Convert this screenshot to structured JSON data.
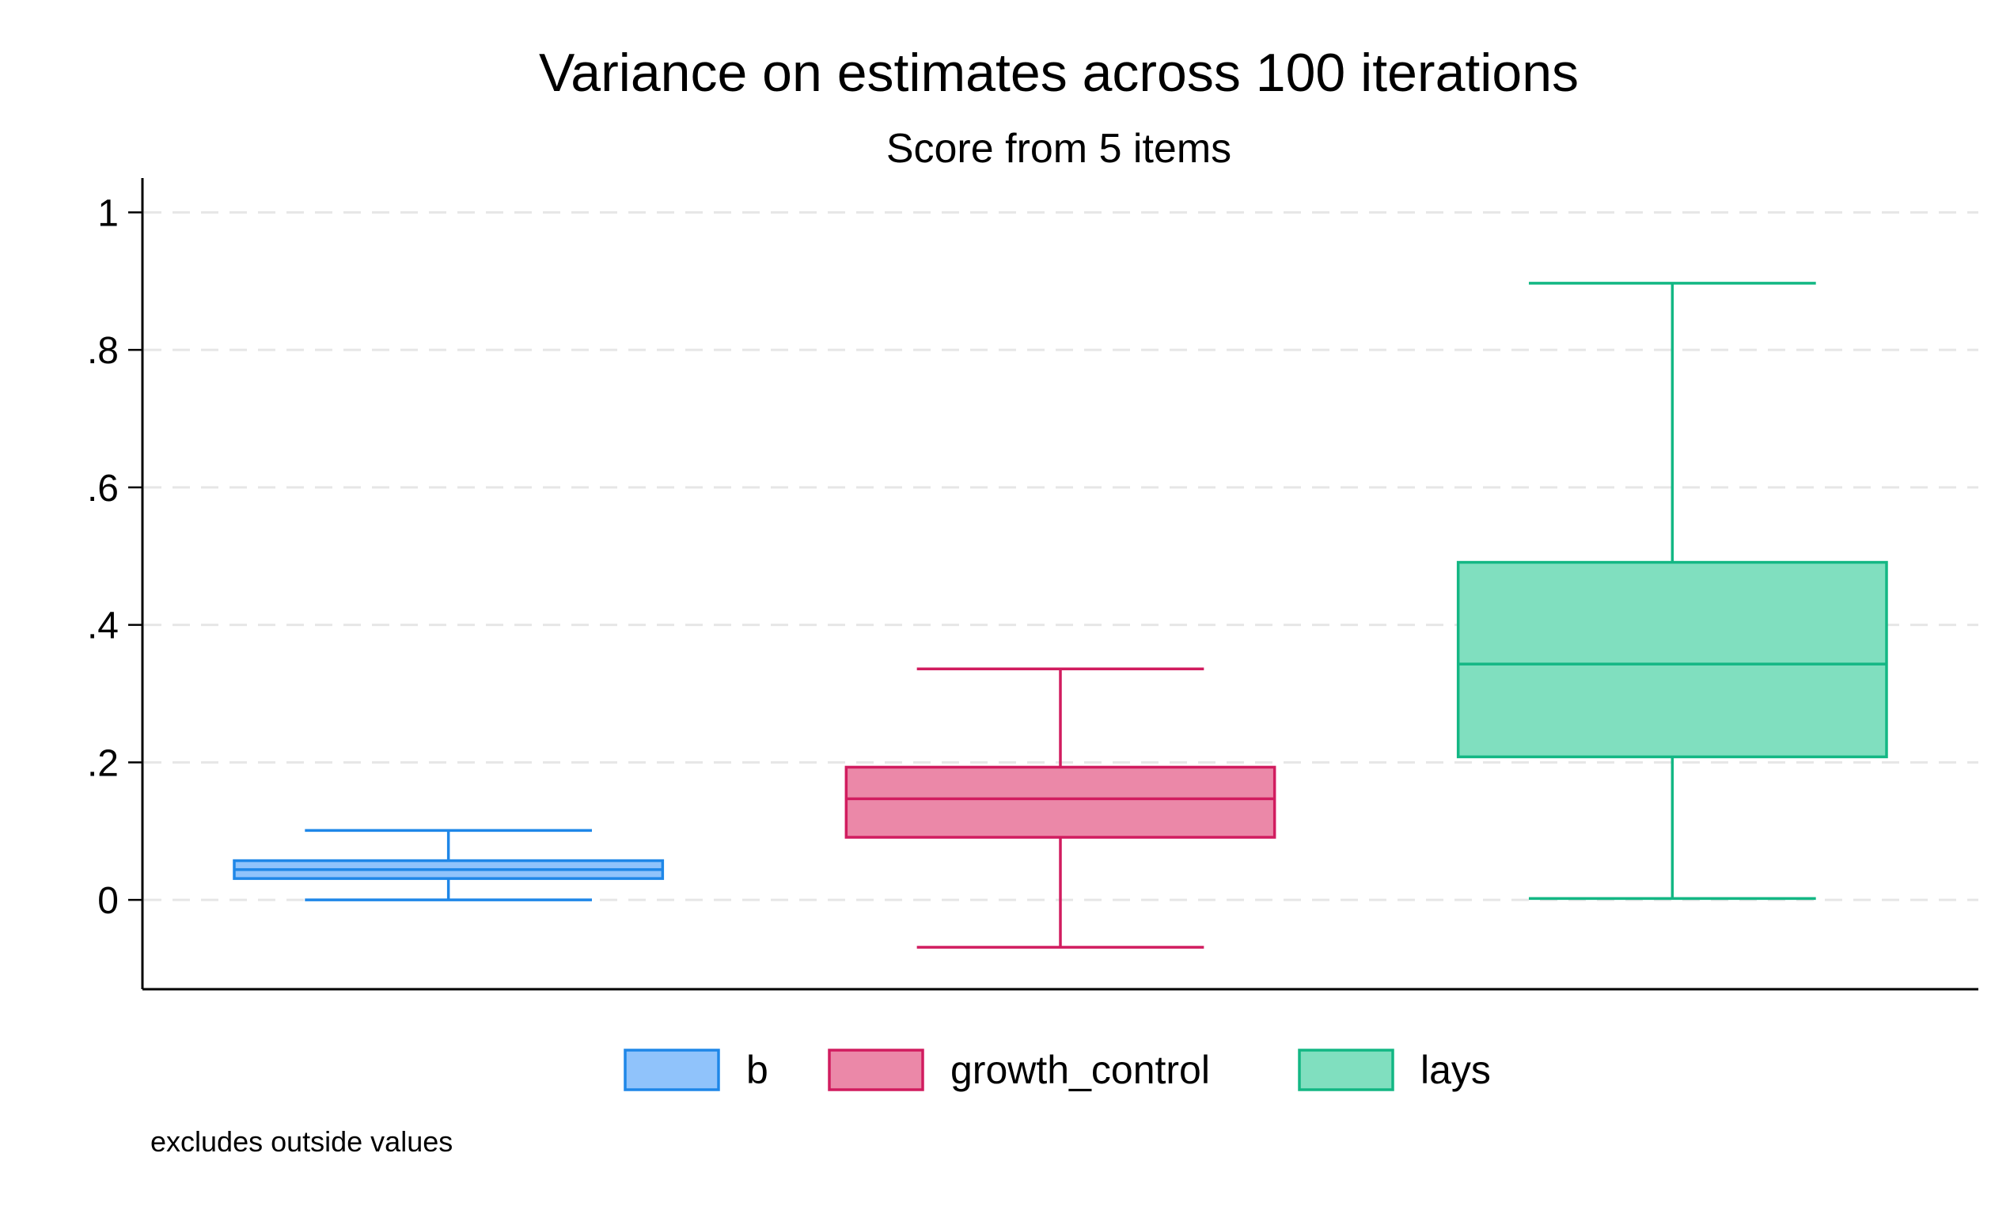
{
  "chart_data": {
    "type": "box",
    "title": "Variance on estimates across 100 iterations",
    "subtitle": "Score from 5 items",
    "xlabel": "",
    "ylabel": "",
    "ylim": [
      -0.13,
      1.05
    ],
    "yticks": [
      {
        "value": 0,
        "label": "0"
      },
      {
        "value": 0.2,
        "label": ".2"
      },
      {
        "value": 0.4,
        "label": ".4"
      },
      {
        "value": 0.6,
        "label": ".6"
      },
      {
        "value": 0.8,
        "label": ".8"
      },
      {
        "value": 1,
        "label": "1"
      }
    ],
    "grid": true,
    "legend_position": "bottom",
    "note": "excludes outside values",
    "series": [
      {
        "name": "b",
        "whisker_low": 0.0,
        "q1": 0.031,
        "median": 0.044,
        "q3": 0.057,
        "whisker_high": 0.101,
        "fill": "#90c3fb",
        "stroke": "#1f87e8"
      },
      {
        "name": "growth_control",
        "whisker_low": -0.069,
        "q1": 0.091,
        "median": 0.147,
        "q3": 0.193,
        "whisker_high": 0.336,
        "fill": "#eb88a8",
        "stroke": "#d11c5f"
      },
      {
        "name": "lays",
        "whisker_low": 0.002,
        "q1": 0.208,
        "median": 0.343,
        "q3": 0.491,
        "whisker_high": 0.897,
        "fill": "#80dfbf",
        "stroke": "#13b784"
      }
    ]
  }
}
